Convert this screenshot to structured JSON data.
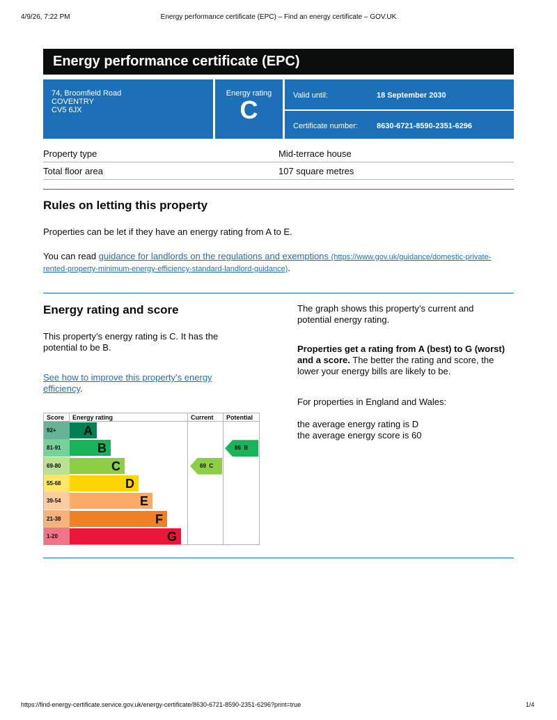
{
  "print_header": {
    "datetime": "4/9/26, 7:22 PM",
    "title": "Energy performance certificate (EPC) – Find an energy certificate – GOV.UK"
  },
  "print_footer": {
    "url": "https://find-energy-certificate.service.gov.uk/energy-certificate/8630-6721-8590-2351-6296?print=true",
    "page": "1/4"
  },
  "title": "Energy performance certificate (EPC)",
  "address": [
    "74, Broomfield Road",
    "COVENTRY",
    "CV5 6JX"
  ],
  "rating_label": "Energy rating",
  "rating": "C",
  "valid_label": "Valid until:",
  "valid_value": "18 September 2030",
  "cert_label": "Certificate number:",
  "cert_value": "8630-6721-8590-2351-6296",
  "property": [
    {
      "label": "Property type",
      "value": "Mid-terrace house"
    },
    {
      "label": "Total floor area",
      "value": "107 square metres"
    }
  ],
  "letting": {
    "heading": "Rules on letting this property",
    "p1": "Properties can be let if they have an energy rating from A to E.",
    "p2_prefix": "You can read ",
    "link": "guidance for landlords on the regulations and exemptions",
    "link_url": "(https://www.gov.uk/guidance/domestic-private-rented-property-minimum-energy-efficiency-standard-landlord-guidance)",
    "p2_suffix": "."
  },
  "score": {
    "heading": "Energy rating and score",
    "p1": "This property’s energy rating is C. It has the potential to be B.",
    "link": "See how to improve this property’s energy efficiency",
    "link_suffix": ".",
    "r1": "The graph shows this property’s current and potential energy rating.",
    "r2_bold": "Properties get a rating from A (best) to G (worst) and a score.",
    "r2_rest": " The better the rating and score, the lower your energy bills are likely to be.",
    "r3": "For properties in England and Wales:",
    "r4": "the average energy rating is D",
    "r5": "the average energy score is 60"
  },
  "chart_data": {
    "type": "bar",
    "headers": [
      "Score",
      "Energy rating",
      "Current",
      "Potential"
    ],
    "bands": [
      {
        "range": "92+",
        "letter": "A",
        "color": "#008054",
        "tint": "#66b398"
      },
      {
        "range": "81-91",
        "letter": "B",
        "color": "#19b459",
        "tint": "#75d29b"
      },
      {
        "range": "69-80",
        "letter": "C",
        "color": "#8dce46",
        "tint": "#bbe290"
      },
      {
        "range": "55-68",
        "letter": "D",
        "color": "#ffd500",
        "tint": "#ffe666"
      },
      {
        "range": "39-54",
        "letter": "E",
        "color": "#fcaa65",
        "tint": "#fdcca3"
      },
      {
        "range": "21-38",
        "letter": "F",
        "color": "#ef8023",
        "tint": "#f5b37b"
      },
      {
        "range": "1-20",
        "letter": "G",
        "color": "#e9153b",
        "tint": "#f27389"
      }
    ],
    "current": {
      "score": 69,
      "letter": "C",
      "label": "69  C"
    },
    "potential": {
      "score": 86,
      "letter": "B",
      "label": "86  B"
    }
  }
}
